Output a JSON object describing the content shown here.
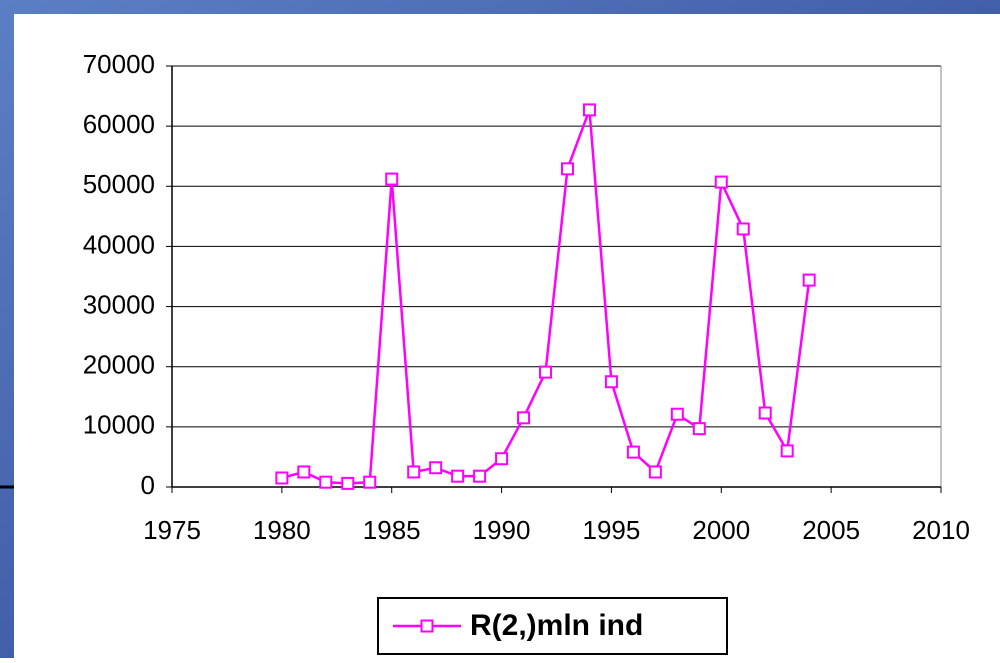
{
  "chart_data": {
    "type": "line",
    "x": [
      1980,
      1981,
      1982,
      1983,
      1984,
      1985,
      1986,
      1987,
      1988,
      1989,
      1990,
      1991,
      1992,
      1993,
      1994,
      1995,
      1996,
      1997,
      1998,
      1999,
      2000,
      2001,
      2002,
      2003,
      2004
    ],
    "series": [
      {
        "name": "R(2,)mln ind",
        "color": "#ff00ff",
        "values": [
          1500,
          2500,
          800,
          600,
          800,
          51200,
          2500,
          3200,
          1800,
          1800,
          4700,
          11500,
          19100,
          52900,
          62700,
          17500,
          5800,
          2500,
          12100,
          9700,
          50700,
          42900,
          12300,
          6000,
          34400
        ]
      }
    ],
    "xlim": [
      1975,
      2010
    ],
    "xticks": [
      1975,
      1980,
      1985,
      1990,
      1995,
      2000,
      2005,
      2010
    ],
    "ylim": [
      0,
      70000
    ],
    "yticks": [
      0,
      10000,
      20000,
      30000,
      40000,
      50000,
      60000,
      70000
    ],
    "grid": true,
    "legend": "bottom"
  }
}
